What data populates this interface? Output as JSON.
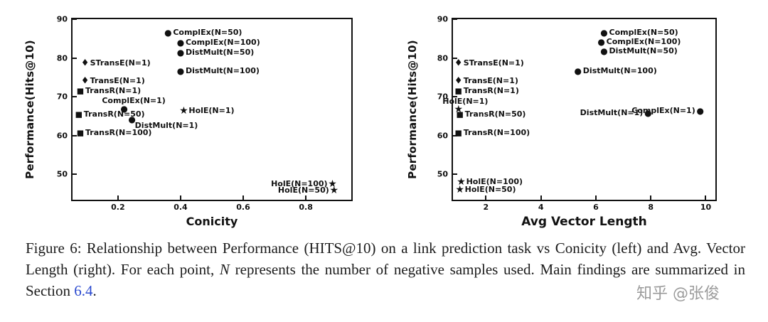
{
  "colors": {
    "text": "#111111",
    "link": "#2b4acf",
    "watermark": "#9b9b9b",
    "marker": "#111111"
  },
  "marker_styles": {
    "circle": {
      "glyph": "●",
      "size": 12
    },
    "diamond": {
      "glyph": "♦",
      "size": 13
    },
    "square": {
      "glyph": "■",
      "size": 11
    },
    "star": {
      "glyph": "★",
      "size": 14
    }
  },
  "chart_data": [
    {
      "type": "scatter",
      "title": "",
      "xlabel": "Conicity",
      "ylabel": "Performance(Hits@10)",
      "xlim": [
        0.055,
        0.945
      ],
      "ylim": [
        43.5,
        90
      ],
      "grid": false,
      "legend": "none (points labeled inline)",
      "xticks": [
        {
          "value": 0.2,
          "label": "0.2"
        },
        {
          "value": 0.4,
          "label": "0.4"
        },
        {
          "value": 0.6,
          "label": "0.6"
        },
        {
          "value": 0.8,
          "label": "0.8"
        }
      ],
      "yticks": [
        {
          "value": 50,
          "label": "50"
        },
        {
          "value": 60,
          "label": "60"
        },
        {
          "value": 70,
          "label": "70"
        },
        {
          "value": 80,
          "label": "80"
        },
        {
          "value": 90,
          "label": "90"
        }
      ],
      "points": [
        {
          "label": "ComplEx(N=50)",
          "x": 0.36,
          "y": 86.6,
          "marker": "circle",
          "label_pos": "right"
        },
        {
          "label": "ComplEx(N=100)",
          "x": 0.4,
          "y": 84.0,
          "marker": "circle",
          "label_pos": "right"
        },
        {
          "label": "DistMult(N=50)",
          "x": 0.4,
          "y": 81.4,
          "marker": "circle",
          "label_pos": "right"
        },
        {
          "label": "STransE(N=1)",
          "x": 0.095,
          "y": 78.6,
          "marker": "diamond",
          "label_pos": "right"
        },
        {
          "label": "DistMult(N=100)",
          "x": 0.4,
          "y": 76.6,
          "marker": "circle",
          "label_pos": "right"
        },
        {
          "label": "TransE(N=1)",
          "x": 0.095,
          "y": 74.0,
          "marker": "diamond",
          "label_pos": "right"
        },
        {
          "label": "TransR(N=1)",
          "x": 0.08,
          "y": 71.5,
          "marker": "square",
          "label_pos": "right"
        },
        {
          "label": "ComplEx(N=1)",
          "x": 0.22,
          "y": 67.0,
          "marker": "circle",
          "label_pos": "above"
        },
        {
          "label": "HolE(N=1)",
          "x": 0.41,
          "y": 66.4,
          "marker": "star",
          "label_pos": "right"
        },
        {
          "label": "TransR(N=50)",
          "x": 0.075,
          "y": 65.4,
          "marker": "square",
          "label_pos": "right"
        },
        {
          "label": "DistMult(N=1)",
          "x": 0.245,
          "y": 64.2,
          "marker": "circle",
          "label_pos": "below"
        },
        {
          "label": "TransR(N=100)",
          "x": 0.08,
          "y": 60.8,
          "marker": "square",
          "label_pos": "right"
        },
        {
          "label": "HolE(N=100)",
          "x": 0.885,
          "y": 47.6,
          "marker": "star",
          "label_pos": "left"
        },
        {
          "label": "HolE(N=50)",
          "x": 0.89,
          "y": 45.8,
          "marker": "star",
          "label_pos": "left"
        }
      ]
    },
    {
      "type": "scatter",
      "title": "",
      "xlabel": "Avg Vector Length",
      "ylabel": "Performance(Hits@10)",
      "xlim": [
        0.8,
        10.35
      ],
      "ylim": [
        43.5,
        90
      ],
      "grid": false,
      "legend": "none (points labeled inline)",
      "xticks": [
        {
          "value": 2,
          "label": "2"
        },
        {
          "value": 4,
          "label": "4"
        },
        {
          "value": 6,
          "label": "6"
        },
        {
          "value": 8,
          "label": "8"
        },
        {
          "value": 10,
          "label": "10"
        }
      ],
      "yticks": [
        {
          "value": 50,
          "label": "50"
        },
        {
          "value": 60,
          "label": "60"
        },
        {
          "value": 70,
          "label": "70"
        },
        {
          "value": 80,
          "label": "80"
        },
        {
          "value": 90,
          "label": "90"
        }
      ],
      "points": [
        {
          "label": "ComplEx(N=50)",
          "x": 6.3,
          "y": 86.6,
          "marker": "circle",
          "label_pos": "right"
        },
        {
          "label": "ComplEx(N=100)",
          "x": 6.2,
          "y": 84.2,
          "marker": "circle",
          "label_pos": "right"
        },
        {
          "label": "DistMult(N=50)",
          "x": 6.3,
          "y": 81.8,
          "marker": "circle",
          "label_pos": "right"
        },
        {
          "label": "STransE(N=1)",
          "x": 1.0,
          "y": 78.6,
          "marker": "diamond",
          "label_pos": "right"
        },
        {
          "label": "DistMult(N=100)",
          "x": 5.35,
          "y": 76.6,
          "marker": "circle",
          "label_pos": "right"
        },
        {
          "label": "TransE(N=1)",
          "x": 1.0,
          "y": 74.0,
          "marker": "diamond",
          "label_pos": "right"
        },
        {
          "label": "TransR(N=1)",
          "x": 1.0,
          "y": 71.5,
          "marker": "square",
          "label_pos": "right"
        },
        {
          "label": "HolE(N=1)",
          "x": 1.0,
          "y": 66.8,
          "marker": "star",
          "label_pos": "above"
        },
        {
          "label": "TransR(N=50)",
          "x": 1.05,
          "y": 65.4,
          "marker": "square",
          "label_pos": "right"
        },
        {
          "label": "ComplEx(N=1)",
          "x": 9.8,
          "y": 66.3,
          "marker": "circle",
          "label_pos": "left"
        },
        {
          "label": "DistMult(N=1)",
          "x": 7.9,
          "y": 65.8,
          "marker": "circle",
          "label_pos": "left"
        },
        {
          "label": "TransR(N=100)",
          "x": 1.0,
          "y": 60.8,
          "marker": "square",
          "label_pos": "right"
        },
        {
          "label": "HolE(N=100)",
          "x": 1.1,
          "y": 48.0,
          "marker": "star",
          "label_pos": "right"
        },
        {
          "label": "HolE(N=50)",
          "x": 1.05,
          "y": 46.0,
          "marker": "star",
          "label_pos": "right"
        }
      ]
    }
  ],
  "caption": {
    "segments": [
      {
        "text": "Figure 6: Relationship between Performance (HITS@10) on a link prediction task vs Conicity (left) and Avg. Vector Length (right). For each point, ",
        "style": "normal"
      },
      {
        "text": "N",
        "style": "italic"
      },
      {
        "text": " represents the number of negative samples used. Main findings are summarized in Section ",
        "style": "normal"
      },
      {
        "text": "6.4",
        "style": "link"
      },
      {
        "text": ".",
        "style": "normal"
      }
    ]
  },
  "watermark": {
    "text": "知乎 @张俊"
  }
}
